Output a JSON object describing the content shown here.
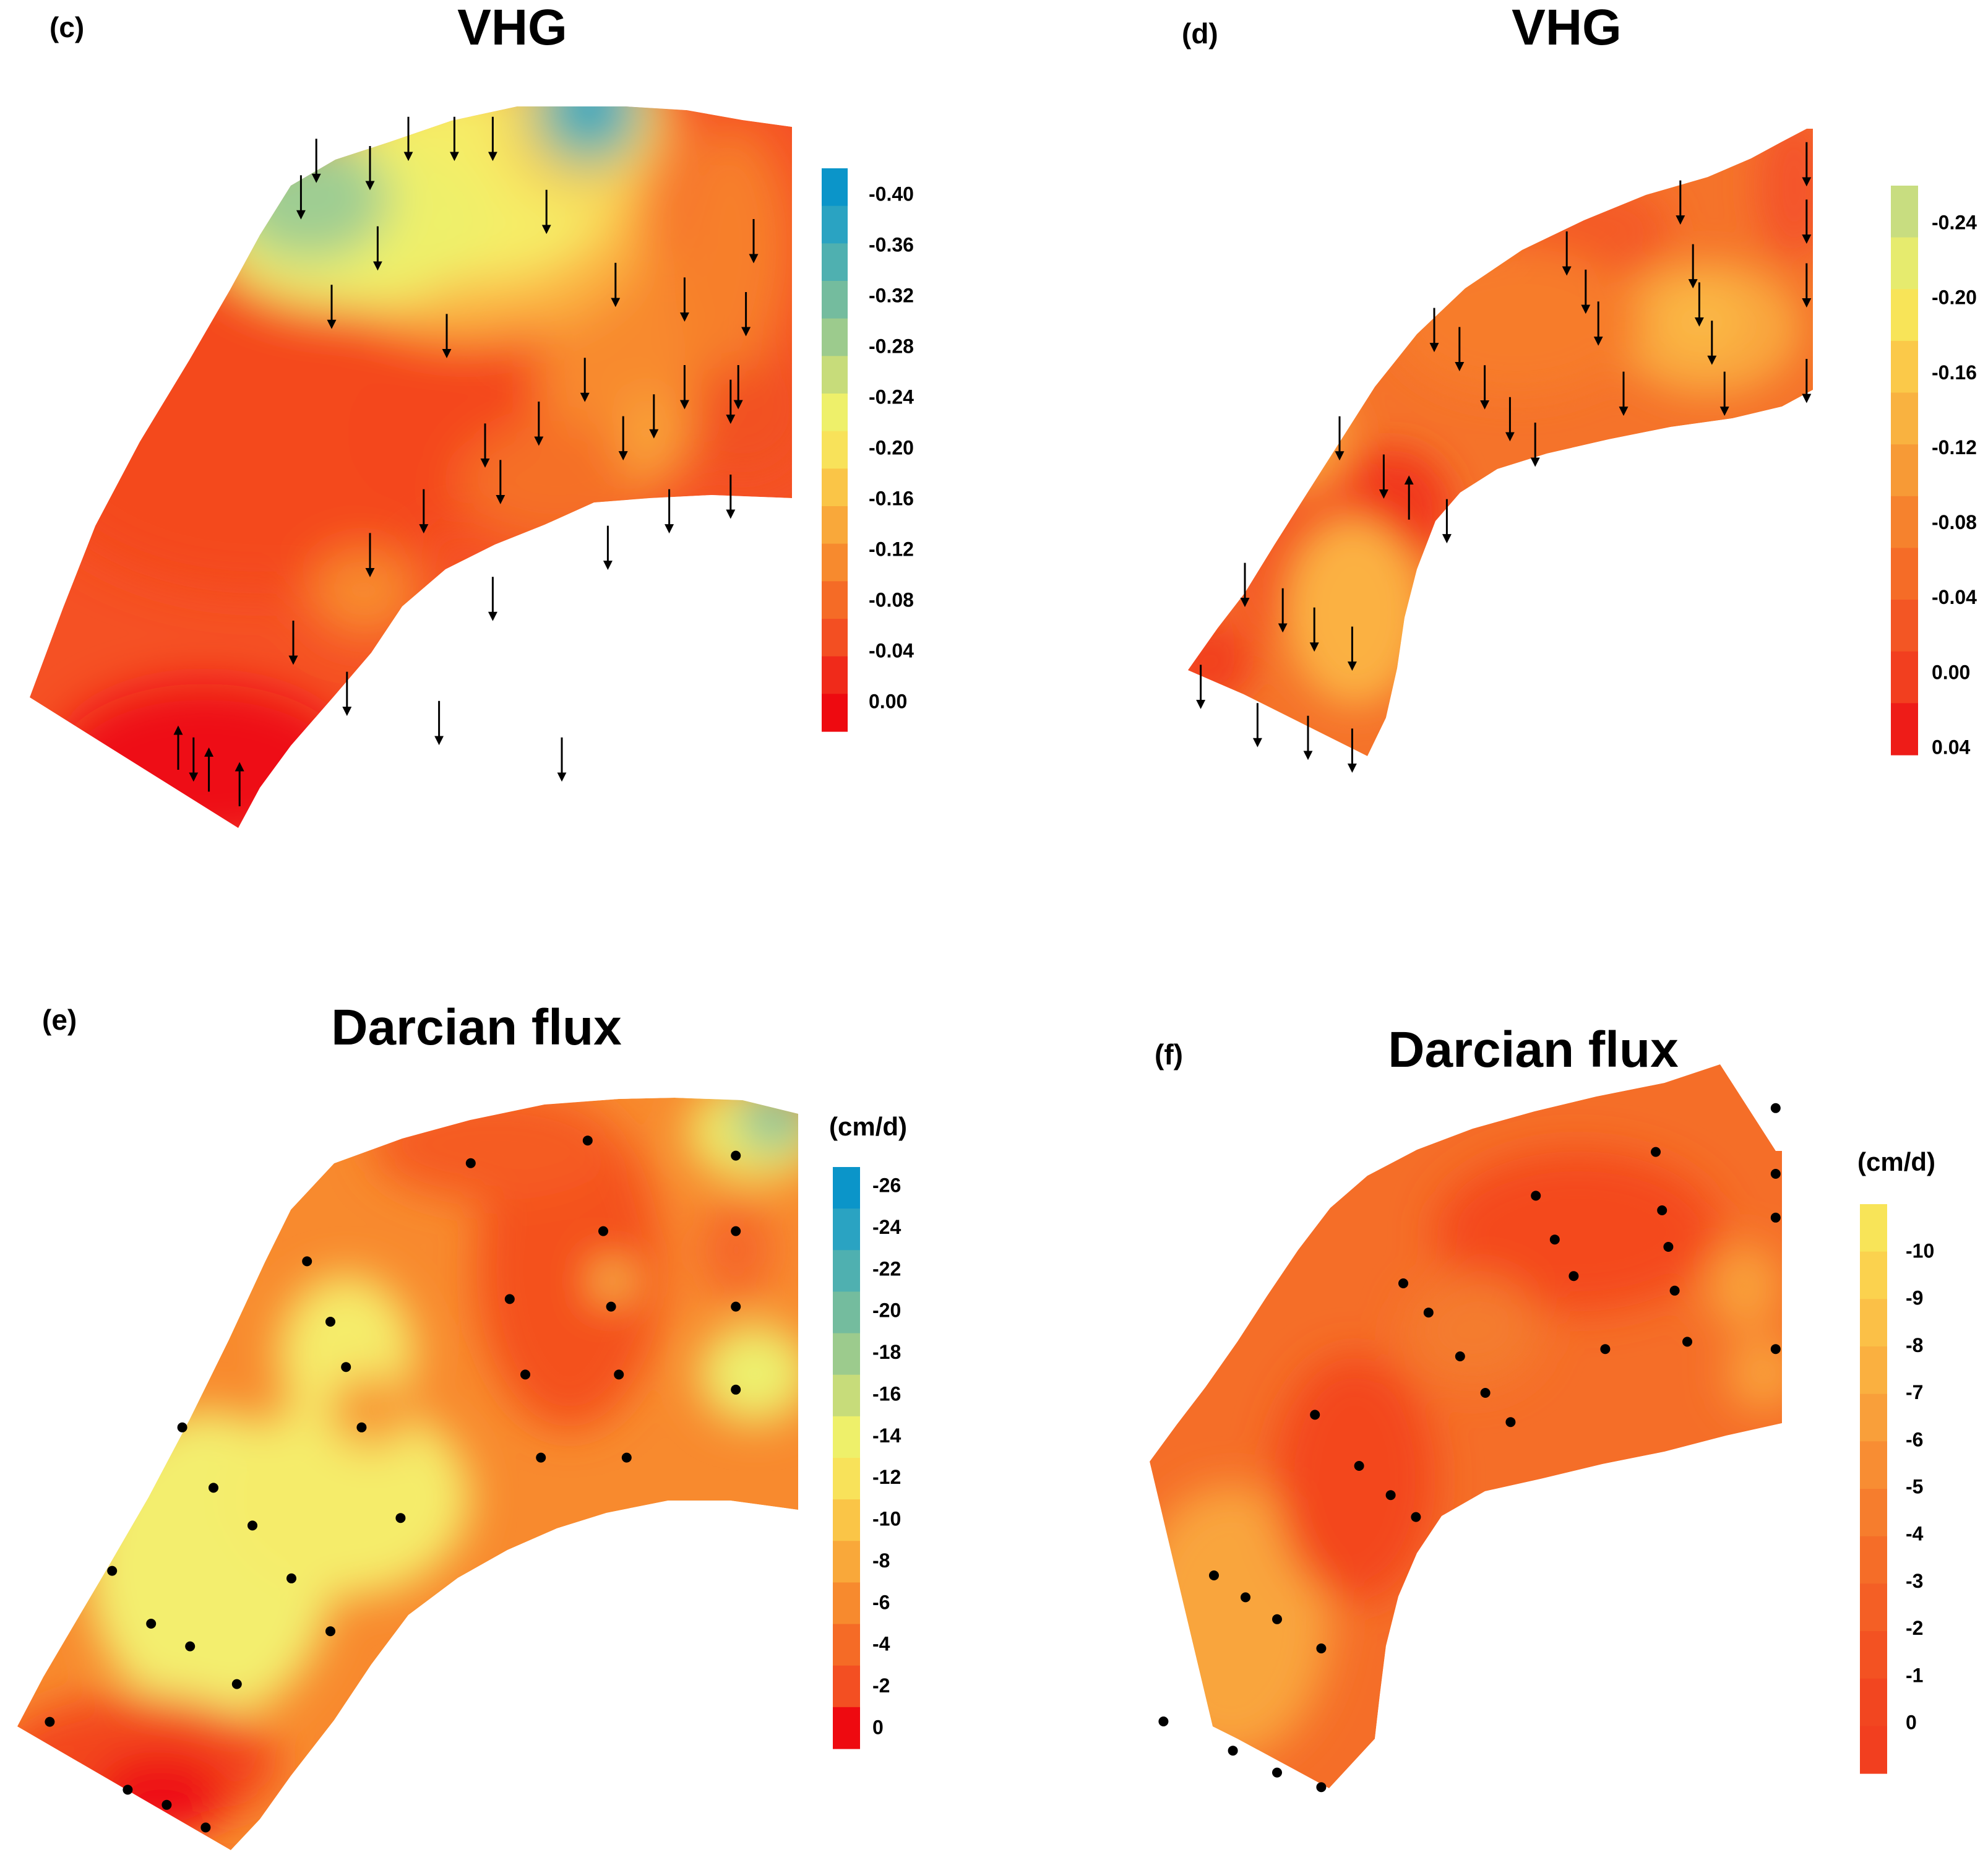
{
  "figure": {
    "panels": [
      {
        "id": "c",
        "label": "(c)",
        "title": "VHG",
        "unit": "",
        "colorbar": {
          "ticks": [
            "-0.40",
            "-0.36",
            "-0.32",
            "-0.28",
            "-0.24",
            "-0.20",
            "-0.16",
            "-0.12",
            "-0.08",
            "-0.04",
            "0.00"
          ],
          "colors": [
            "#0b95c9",
            "#2aa3c2",
            "#4fb0b0",
            "#74bc9e",
            "#9ccb8d",
            "#c7dc7a",
            "#eef06a",
            "#f8e25a",
            "#fac547",
            "#f9a83a",
            "#f78a2e",
            "#f56b26",
            "#f34f22",
            "#f02a1a",
            "#ee0a10"
          ]
        },
        "markers": {
          "kind": "arrow",
          "points": [
            {
              "x": 0.22,
              "y": 0.91,
              "dir": "down"
            },
            {
              "x": 0.35,
              "y": 0.75,
              "dir": "down"
            },
            {
              "x": 0.42,
              "y": 0.82,
              "dir": "down"
            },
            {
              "x": 0.54,
              "y": 0.86,
              "dir": "down"
            },
            {
              "x": 0.7,
              "y": 0.91,
              "dir": "down"
            },
            {
              "x": 0.45,
              "y": 0.63,
              "dir": "down"
            },
            {
              "x": 0.61,
              "y": 0.69,
              "dir": "down"
            },
            {
              "x": 0.52,
              "y": 0.57,
              "dir": "down"
            },
            {
              "x": 0.62,
              "y": 0.53,
              "dir": "down"
            },
            {
              "x": 0.76,
              "y": 0.62,
              "dir": "down"
            },
            {
              "x": 0.84,
              "y": 0.57,
              "dir": "down"
            },
            {
              "x": 0.92,
              "y": 0.55,
              "dir": "down"
            },
            {
              "x": 0.82,
              "y": 0.44,
              "dir": "down"
            },
            {
              "x": 0.92,
              "y": 0.42,
              "dir": "down"
            },
            {
              "x": 0.4,
              "y": 0.29,
              "dir": "down"
            },
            {
              "x": 0.55,
              "y": 0.33,
              "dir": "down"
            },
            {
              "x": 0.6,
              "y": 0.48,
              "dir": "down"
            },
            {
              "x": 0.67,
              "y": 0.45,
              "dir": "down"
            },
            {
              "x": 0.73,
              "y": 0.39,
              "dir": "down"
            },
            {
              "x": 0.78,
              "y": 0.47,
              "dir": "down"
            },
            {
              "x": 0.86,
              "y": 0.4,
              "dir": "down"
            },
            {
              "x": 0.93,
              "y": 0.4,
              "dir": "down"
            },
            {
              "x": 0.46,
              "y": 0.21,
              "dir": "down"
            },
            {
              "x": 0.68,
              "y": 0.16,
              "dir": "down"
            },
            {
              "x": 0.77,
              "y": 0.26,
              "dir": "down"
            },
            {
              "x": 0.86,
              "y": 0.28,
              "dir": "down"
            },
            {
              "x": 0.94,
              "y": 0.3,
              "dir": "down"
            },
            {
              "x": 0.95,
              "y": 0.2,
              "dir": "down"
            },
            {
              "x": 0.36,
              "y": 0.14,
              "dir": "down"
            },
            {
              "x": 0.38,
              "y": 0.09,
              "dir": "down"
            },
            {
              "x": 0.45,
              "y": 0.1,
              "dir": "down"
            },
            {
              "x": 0.5,
              "y": 0.06,
              "dir": "down"
            },
            {
              "x": 0.56,
              "y": 0.06,
              "dir": "down"
            },
            {
              "x": 0.61,
              "y": 0.06,
              "dir": "down"
            },
            {
              "x": 0.2,
              "y": 0.9,
              "dir": "up"
            },
            {
              "x": 0.24,
              "y": 0.93,
              "dir": "up"
            },
            {
              "x": 0.28,
              "y": 0.95,
              "dir": "up"
            }
          ]
        }
      },
      {
        "id": "d",
        "label": "(d)",
        "title": "VHG",
        "unit": "",
        "colorbar": {
          "ticks": [
            "-0.24",
            "-0.20",
            "-0.16",
            "-0.12",
            "-0.08",
            "-0.04",
            "0.00",
            "0.04"
          ],
          "colors": [
            "#c8dd80",
            "#e6eb6e",
            "#f8e458",
            "#fbc949",
            "#f9b240",
            "#f79a36",
            "#f6822d",
            "#f56c27",
            "#f35624",
            "#f23f1f",
            "#ee1c18"
          ]
        },
        "markers": {
          "kind": "arrow",
          "points": [
            {
              "x": 0.03,
              "y": 0.88,
              "dir": "down"
            },
            {
              "x": 0.12,
              "y": 0.94,
              "dir": "down"
            },
            {
              "x": 0.2,
              "y": 0.96,
              "dir": "down"
            },
            {
              "x": 0.27,
              "y": 0.98,
              "dir": "down"
            },
            {
              "x": 0.1,
              "y": 0.72,
              "dir": "down"
            },
            {
              "x": 0.16,
              "y": 0.76,
              "dir": "down"
            },
            {
              "x": 0.21,
              "y": 0.79,
              "dir": "down"
            },
            {
              "x": 0.27,
              "y": 0.82,
              "dir": "down"
            },
            {
              "x": 0.25,
              "y": 0.49,
              "dir": "down"
            },
            {
              "x": 0.32,
              "y": 0.55,
              "dir": "down"
            },
            {
              "x": 0.36,
              "y": 0.59,
              "dir": "up"
            },
            {
              "x": 0.42,
              "y": 0.62,
              "dir": "down"
            },
            {
              "x": 0.4,
              "y": 0.32,
              "dir": "down"
            },
            {
              "x": 0.44,
              "y": 0.35,
              "dir": "down"
            },
            {
              "x": 0.48,
              "y": 0.41,
              "dir": "down"
            },
            {
              "x": 0.52,
              "y": 0.46,
              "dir": "down"
            },
            {
              "x": 0.56,
              "y": 0.5,
              "dir": "down"
            },
            {
              "x": 0.61,
              "y": 0.2,
              "dir": "down"
            },
            {
              "x": 0.64,
              "y": 0.26,
              "dir": "down"
            },
            {
              "x": 0.66,
              "y": 0.31,
              "dir": "down"
            },
            {
              "x": 0.7,
              "y": 0.42,
              "dir": "down"
            },
            {
              "x": 0.79,
              "y": 0.12,
              "dir": "down"
            },
            {
              "x": 0.81,
              "y": 0.22,
              "dir": "down"
            },
            {
              "x": 0.82,
              "y": 0.28,
              "dir": "down"
            },
            {
              "x": 0.84,
              "y": 0.34,
              "dir": "down"
            },
            {
              "x": 0.86,
              "y": 0.42,
              "dir": "down"
            },
            {
              "x": 0.99,
              "y": 0.06,
              "dir": "down"
            },
            {
              "x": 0.99,
              "y": 0.15,
              "dir": "down"
            },
            {
              "x": 0.99,
              "y": 0.25,
              "dir": "down"
            },
            {
              "x": 0.99,
              "y": 0.4,
              "dir": "down"
            }
          ]
        }
      },
      {
        "id": "e",
        "label": "(e)",
        "title": "Darcian flux",
        "unit": "(cm/d)",
        "colorbar": {
          "ticks": [
            "-26",
            "-24",
            "-22",
            "-20",
            "-18",
            "-16",
            "-14",
            "-12",
            "-10",
            "-8",
            "-6",
            "-4",
            "-2",
            "0"
          ],
          "colors": [
            "#0b95c9",
            "#2aa3c2",
            "#4fb0b0",
            "#74bc9e",
            "#9ccb8d",
            "#c7dc7a",
            "#eef06a",
            "#f8e25a",
            "#fac547",
            "#f9a83a",
            "#f78a2e",
            "#f56b26",
            "#f34f22",
            "#ee0a10"
          ]
        },
        "markers": {
          "kind": "dot",
          "points": [
            {
              "x": 0.04,
              "y": 0.83
            },
            {
              "x": 0.14,
              "y": 0.92
            },
            {
              "x": 0.19,
              "y": 0.94
            },
            {
              "x": 0.24,
              "y": 0.97
            },
            {
              "x": 0.12,
              "y": 0.63
            },
            {
              "x": 0.17,
              "y": 0.7
            },
            {
              "x": 0.22,
              "y": 0.73
            },
            {
              "x": 0.28,
              "y": 0.78
            },
            {
              "x": 0.21,
              "y": 0.44
            },
            {
              "x": 0.25,
              "y": 0.52
            },
            {
              "x": 0.3,
              "y": 0.57
            },
            {
              "x": 0.35,
              "y": 0.64
            },
            {
              "x": 0.4,
              "y": 0.71
            },
            {
              "x": 0.37,
              "y": 0.22
            },
            {
              "x": 0.4,
              "y": 0.3
            },
            {
              "x": 0.42,
              "y": 0.36
            },
            {
              "x": 0.44,
              "y": 0.44
            },
            {
              "x": 0.49,
              "y": 0.56
            },
            {
              "x": 0.58,
              "y": 0.09
            },
            {
              "x": 0.63,
              "y": 0.27
            },
            {
              "x": 0.65,
              "y": 0.37
            },
            {
              "x": 0.67,
              "y": 0.48
            },
            {
              "x": 0.73,
              "y": 0.06
            },
            {
              "x": 0.75,
              "y": 0.18
            },
            {
              "x": 0.76,
              "y": 0.28
            },
            {
              "x": 0.77,
              "y": 0.37
            },
            {
              "x": 0.78,
              "y": 0.48
            },
            {
              "x": 0.92,
              "y": 0.08
            },
            {
              "x": 0.92,
              "y": 0.18
            },
            {
              "x": 0.92,
              "y": 0.28
            },
            {
              "x": 0.92,
              "y": 0.39
            }
          ]
        }
      },
      {
        "id": "f",
        "label": "(f)",
        "title": "Darcian flux",
        "unit": "(cm/d)",
        "colorbar": {
          "ticks": [
            "-10",
            "-9",
            "-8",
            "-7",
            "-6",
            "-5",
            "-4",
            "-3",
            "-2",
            "-1",
            "0"
          ],
          "colors": [
            "#f8e458",
            "#fbd24e",
            "#fbc047",
            "#fab040",
            "#f99f3a",
            "#f88d33",
            "#f67d2d",
            "#f56d28",
            "#f45f25",
            "#f35222",
            "#f24620",
            "#f23f1f"
          ]
        },
        "markers": {
          "kind": "dot",
          "points": [
            {
              "x": 0.02,
              "y": 0.9
            },
            {
              "x": 0.13,
              "y": 0.94
            },
            {
              "x": 0.2,
              "y": 0.97
            },
            {
              "x": 0.27,
              "y": 0.99
            },
            {
              "x": 0.1,
              "y": 0.7
            },
            {
              "x": 0.15,
              "y": 0.73
            },
            {
              "x": 0.2,
              "y": 0.76
            },
            {
              "x": 0.27,
              "y": 0.8
            },
            {
              "x": 0.26,
              "y": 0.48
            },
            {
              "x": 0.33,
              "y": 0.55
            },
            {
              "x": 0.38,
              "y": 0.59
            },
            {
              "x": 0.42,
              "y": 0.62
            },
            {
              "x": 0.4,
              "y": 0.3
            },
            {
              "x": 0.44,
              "y": 0.34
            },
            {
              "x": 0.49,
              "y": 0.4
            },
            {
              "x": 0.53,
              "y": 0.45
            },
            {
              "x": 0.57,
              "y": 0.49
            },
            {
              "x": 0.61,
              "y": 0.18
            },
            {
              "x": 0.64,
              "y": 0.24
            },
            {
              "x": 0.67,
              "y": 0.29
            },
            {
              "x": 0.72,
              "y": 0.39
            },
            {
              "x": 0.8,
              "y": 0.12
            },
            {
              "x": 0.81,
              "y": 0.2
            },
            {
              "x": 0.82,
              "y": 0.25
            },
            {
              "x": 0.83,
              "y": 0.31
            },
            {
              "x": 0.85,
              "y": 0.38
            },
            {
              "x": 0.99,
              "y": 0.06
            },
            {
              "x": 0.99,
              "y": 0.15
            },
            {
              "x": 0.99,
              "y": 0.21
            },
            {
              "x": 0.99,
              "y": 0.39
            }
          ]
        }
      }
    ]
  }
}
